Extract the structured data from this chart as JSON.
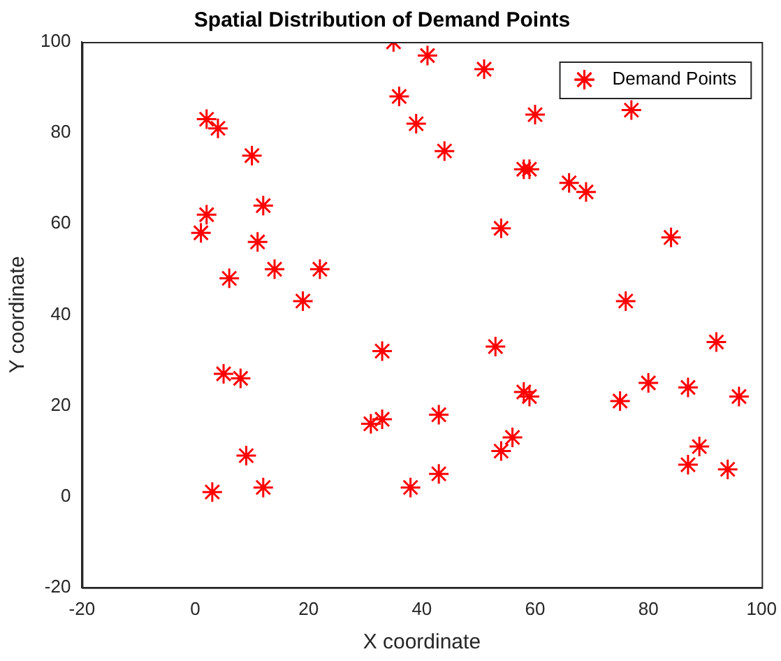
{
  "chart_data": {
    "type": "scatter",
    "title": "Spatial Distribution of Demand Points",
    "xlabel": "X coordinate",
    "ylabel": "Y coordinate",
    "xlim": [
      -20,
      100
    ],
    "xticks": [
      -20,
      0,
      20,
      40,
      60,
      80,
      100
    ],
    "ylim": [
      -20,
      100
    ],
    "yticks": [
      -20,
      0,
      20,
      40,
      60,
      80,
      100
    ],
    "grid": false,
    "legend": "top right",
    "marker": "cross",
    "series": [
      {
        "name": "Demand Points",
        "color": "#ff0000",
        "x": [
          2,
          4,
          2,
          1,
          10,
          12,
          11,
          14,
          6,
          22,
          19,
          5,
          8,
          9,
          3,
          12,
          35,
          36,
          41,
          39,
          44,
          51,
          60,
          58,
          59,
          54,
          66,
          69,
          77,
          84,
          76,
          33,
          31,
          33,
          43,
          43,
          38,
          53,
          56,
          54,
          58,
          59,
          75,
          80,
          87,
          92,
          89,
          87,
          94,
          96
        ],
        "values": [
          83,
          81,
          62,
          58,
          75,
          64,
          56,
          50,
          48,
          50,
          43,
          27,
          26,
          9,
          1,
          2,
          100,
          88,
          97,
          82,
          76,
          94,
          84,
          72,
          72,
          59,
          69,
          67,
          85,
          57,
          43,
          32,
          16,
          17,
          18,
          5,
          2,
          33,
          13,
          10,
          23,
          22,
          21,
          25,
          24,
          34,
          11,
          7,
          6,
          22
        ]
      }
    ]
  }
}
